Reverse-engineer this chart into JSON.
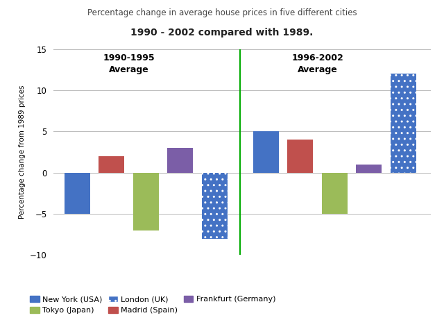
{
  "title_line1": "Percentage change in average house prices in five different cities",
  "title_line2_part1": "1990 - 2002",
  "title_line2_part2": " compared with ",
  "title_line2_part3": "1989.",
  "ylabel": "Percentage change from 1989 prices",
  "ylim": [
    -10,
    15
  ],
  "yticks": [
    -10,
    -5,
    0,
    5,
    10,
    15
  ],
  "period1_label_line1": "1990-1995",
  "period1_label_line2": "Average",
  "period2_label_line1": "1996-2002",
  "period2_label_line2": "Average",
  "period1_order": [
    "New York (USA)",
    "Madrid (Spain)",
    "Tokyo (Japan)",
    "Frankfurt (Germany)",
    "London (UK)"
  ],
  "period2_order": [
    "New York (USA)",
    "Madrid (Spain)",
    "Tokyo (Japan)",
    "Frankfurt (Germany)",
    "London (UK)"
  ],
  "colors": {
    "New York (USA)": "#4472C4",
    "Tokyo (Japan)": "#9BBB59",
    "London (UK)": "#4472C4",
    "Madrid (Spain)": "#C0504D",
    "Frankfurt (Germany)": "#7B5EA7"
  },
  "period1_values": {
    "New York (USA)": -5,
    "Madrid (Spain)": 2,
    "Tokyo (Japan)": -7,
    "Frankfurt (Germany)": 3,
    "London (UK)": -8
  },
  "period2_values": {
    "New York (USA)": 5,
    "Madrid (Spain)": 4,
    "Tokyo (Japan)": -5,
    "Frankfurt (Germany)": 1,
    "London (UK)": 12
  },
  "divider_color": "#00AA00",
  "background_color": "#FFFFFF",
  "grid_color": "#BBBBBB",
  "bar_width": 0.75,
  "p1_positions": [
    1,
    2,
    3,
    4,
    5
  ],
  "p2_positions": [
    6.5,
    7.5,
    8.5,
    9.5,
    10.5
  ],
  "xlim": [
    0.3,
    11.3
  ]
}
